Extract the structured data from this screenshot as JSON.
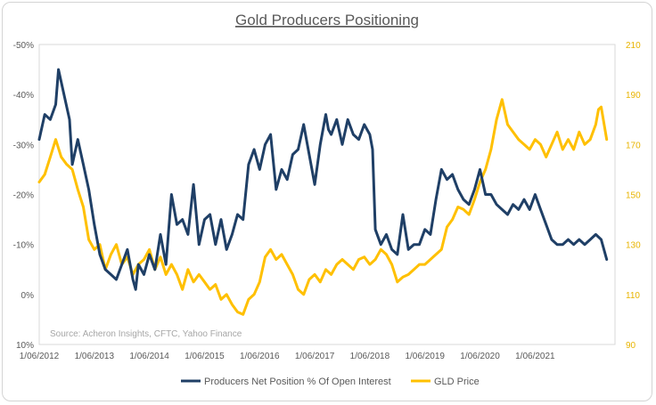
{
  "chart_data": {
    "type": "line",
    "title": "Gold Producers Positioning",
    "source_note": "Source: Acheron Insights, CFTC, Yahoo Finance",
    "x_tick_labels": [
      "1/06/2012",
      "1/06/2013",
      "1/06/2014",
      "1/06/2015",
      "1/06/2016",
      "1/06/2017",
      "1/06/2018",
      "1/06/2019",
      "1/06/2020",
      "1/06/2021"
    ],
    "x_range": [
      2012.0,
      2022.45
    ],
    "y_left": {
      "inverted": true,
      "range": [
        -50,
        10
      ],
      "tick_values": [
        -50,
        -40,
        -30,
        -20,
        -10,
        0,
        10
      ],
      "tick_labels": [
        "-50%",
        "-40%",
        "-30%",
        "-20%",
        "-10%",
        "0%",
        "10%"
      ]
    },
    "y_right": {
      "range": [
        90,
        210
      ],
      "tick_values": [
        90,
        110,
        130,
        150,
        170,
        190,
        210
      ],
      "tick_labels": [
        "90",
        "110",
        "130",
        "150",
        "170",
        "190",
        "210"
      ]
    },
    "series": [
      {
        "name": "Producers Net Position % Of Open Interest",
        "axis": "left",
        "color": "#1f3f66",
        "x": [
          2012.0,
          2012.1,
          2012.2,
          2012.3,
          2012.35,
          2012.45,
          2012.55,
          2012.6,
          2012.7,
          2012.8,
          2012.9,
          2013.0,
          2013.1,
          2013.2,
          2013.3,
          2013.4,
          2013.5,
          2013.6,
          2013.7,
          2013.75,
          2013.8,
          2013.9,
          2014.0,
          2014.1,
          2014.2,
          2014.3,
          2014.4,
          2014.5,
          2014.6,
          2014.7,
          2014.8,
          2014.9,
          2015.0,
          2015.1,
          2015.2,
          2015.3,
          2015.4,
          2015.5,
          2015.6,
          2015.7,
          2015.8,
          2015.9,
          2016.0,
          2016.1,
          2016.2,
          2016.3,
          2016.4,
          2016.5,
          2016.6,
          2016.7,
          2016.8,
          2016.9,
          2017.0,
          2017.1,
          2017.2,
          2017.25,
          2017.3,
          2017.4,
          2017.5,
          2017.6,
          2017.7,
          2017.8,
          2017.9,
          2018.0,
          2018.05,
          2018.1,
          2018.2,
          2018.3,
          2018.4,
          2018.5,
          2018.6,
          2018.7,
          2018.8,
          2018.9,
          2019.0,
          2019.1,
          2019.2,
          2019.3,
          2019.4,
          2019.5,
          2019.6,
          2019.7,
          2019.8,
          2019.9,
          2020.0,
          2020.1,
          2020.2,
          2020.3,
          2020.4,
          2020.5,
          2020.6,
          2020.7,
          2020.8,
          2020.9,
          2021.0,
          2021.1,
          2021.2,
          2021.3,
          2021.4,
          2021.5,
          2021.6,
          2021.7,
          2021.8,
          2021.9,
          2022.0,
          2022.1,
          2022.2,
          2022.3
        ],
        "values": [
          -31,
          -36,
          -35,
          -38,
          -45,
          -40,
          -35,
          -26,
          -31,
          -26,
          -21,
          -14,
          -8,
          -5,
          -4,
          -3,
          -6,
          -9,
          -3,
          -1,
          -6,
          -4,
          -8,
          -5,
          -12,
          -6,
          -20,
          -14,
          -15,
          -12,
          -22,
          -10,
          -15,
          -16,
          -10,
          -15,
          -9,
          -12,
          -16,
          -15,
          -26,
          -29,
          -25,
          -30,
          -32,
          -21,
          -25,
          -23,
          -28,
          -29,
          -34,
          -28,
          -22,
          -30,
          -36,
          -33,
          -32,
          -35,
          -30,
          -35,
          -32,
          -31,
          -34,
          -32,
          -29,
          -13,
          -10,
          -12,
          -9,
          -8,
          -16,
          -9,
          -10,
          -10,
          -13,
          -12,
          -19,
          -25,
          -23,
          -24,
          -21,
          -19,
          -18,
          -21,
          -25,
          -20,
          -20,
          -18,
          -17,
          -16,
          -18,
          -17,
          -19,
          -17,
          -20,
          -17,
          -14,
          -11,
          -10,
          -10,
          -11,
          -10,
          -11,
          -10,
          -11,
          -12,
          -11,
          -7
        ]
      },
      {
        "name": "GLD Price",
        "axis": "right",
        "color": "#ffc000",
        "x": [
          2012.0,
          2012.1,
          2012.2,
          2012.3,
          2012.4,
          2012.5,
          2012.6,
          2012.7,
          2012.8,
          2012.9,
          2013.0,
          2013.1,
          2013.2,
          2013.3,
          2013.4,
          2013.5,
          2013.6,
          2013.7,
          2013.8,
          2013.9,
          2014.0,
          2014.1,
          2014.2,
          2014.3,
          2014.4,
          2014.5,
          2014.6,
          2014.7,
          2014.8,
          2014.9,
          2015.0,
          2015.1,
          2015.2,
          2015.3,
          2015.4,
          2015.5,
          2015.6,
          2015.7,
          2015.8,
          2015.9,
          2016.0,
          2016.1,
          2016.2,
          2016.3,
          2016.4,
          2016.5,
          2016.6,
          2016.7,
          2016.8,
          2016.9,
          2017.0,
          2017.1,
          2017.2,
          2017.3,
          2017.4,
          2017.5,
          2017.6,
          2017.7,
          2017.8,
          2017.9,
          2018.0,
          2018.1,
          2018.2,
          2018.3,
          2018.4,
          2018.5,
          2018.6,
          2018.7,
          2018.8,
          2018.9,
          2019.0,
          2019.1,
          2019.2,
          2019.3,
          2019.4,
          2019.5,
          2019.6,
          2019.7,
          2019.8,
          2019.9,
          2020.0,
          2020.1,
          2020.2,
          2020.3,
          2020.4,
          2020.5,
          2020.6,
          2020.7,
          2020.8,
          2020.9,
          2021.0,
          2021.1,
          2021.2,
          2021.3,
          2021.4,
          2021.5,
          2021.6,
          2021.7,
          2021.8,
          2021.9,
          2022.0,
          2022.1,
          2022.15,
          2022.2,
          2022.3
        ],
        "values": [
          155,
          158,
          165,
          172,
          165,
          162,
          160,
          152,
          145,
          132,
          128,
          130,
          120,
          126,
          130,
          122,
          125,
          118,
          122,
          124,
          128,
          120,
          125,
          118,
          122,
          118,
          112,
          120,
          115,
          118,
          115,
          112,
          114,
          108,
          110,
          106,
          103,
          102,
          108,
          110,
          115,
          125,
          128,
          124,
          126,
          122,
          118,
          112,
          110,
          116,
          118,
          115,
          120,
          118,
          122,
          124,
          122,
          120,
          124,
          125,
          122,
          124,
          128,
          126,
          122,
          115,
          117,
          118,
          120,
          122,
          122,
          124,
          126,
          128,
          137,
          140,
          145,
          144,
          142,
          148,
          155,
          160,
          168,
          180,
          188,
          178,
          175,
          172,
          170,
          168,
          172,
          170,
          165,
          170,
          175,
          168,
          172,
          168,
          175,
          170,
          172,
          178,
          184,
          185,
          172
        ]
      }
    ]
  },
  "legend": {
    "items": [
      {
        "label": "Producers Net Position % Of Open Interest",
        "color": "#1f3f66"
      },
      {
        "label": "GLD Price",
        "color": "#ffc000"
      }
    ]
  }
}
